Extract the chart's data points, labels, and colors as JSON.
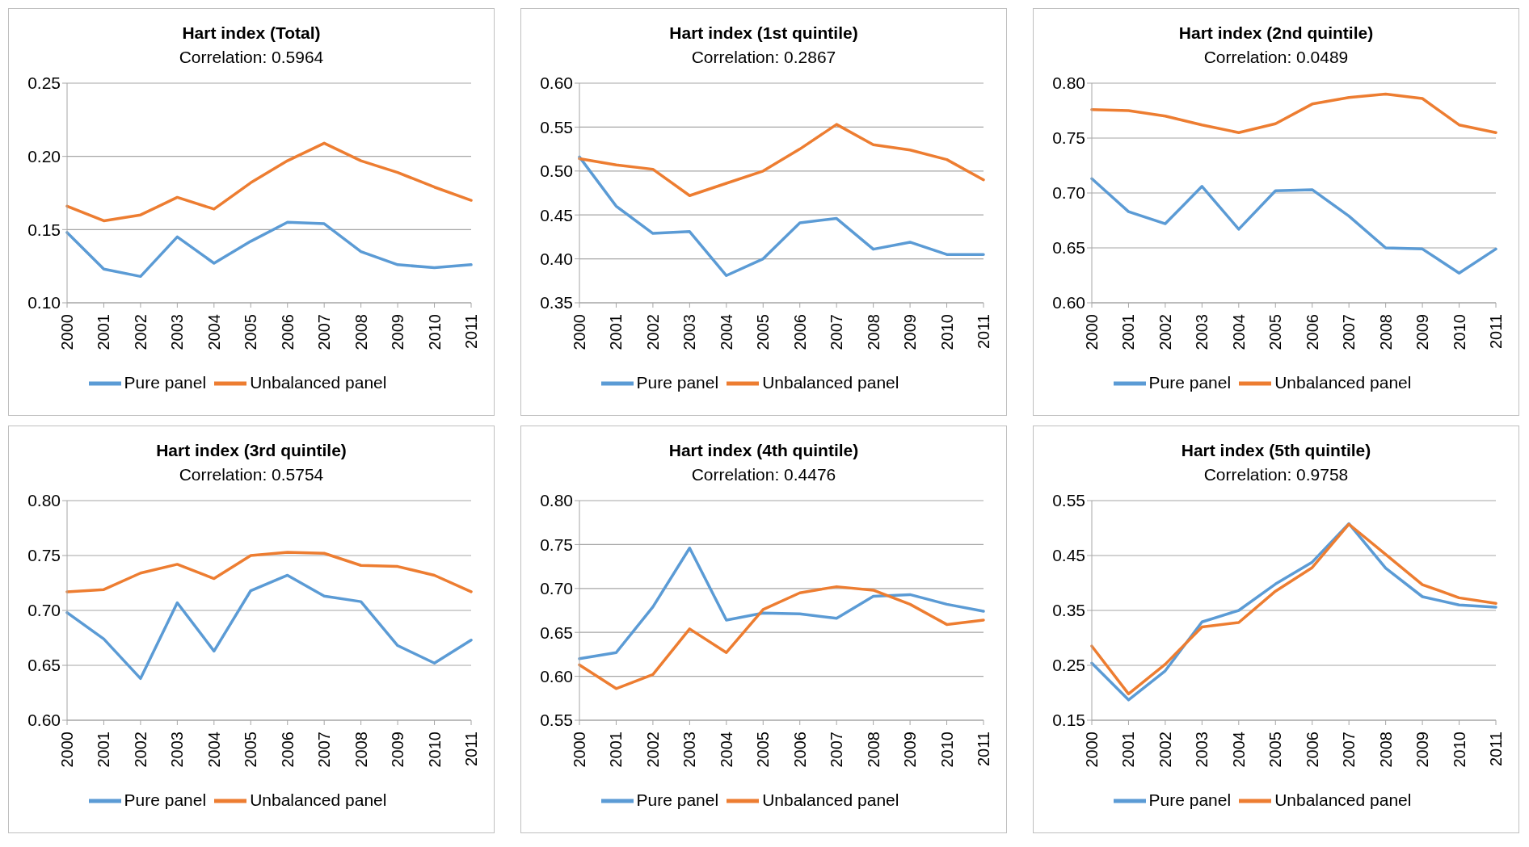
{
  "chart_data": [
    {
      "type": "line",
      "title": "Hart index (Total)",
      "subtitle": "Correlation: 0.5964",
      "categories": [
        "2000",
        "2001",
        "2002",
        "2003",
        "2004",
        "2005",
        "2006",
        "2007",
        "2008",
        "2009",
        "2010",
        "2011"
      ],
      "ylim": [
        0.1,
        0.25
      ],
      "yticks": [
        {
          "value": 0.1,
          "label": "0.10"
        },
        0.15,
        {
          "value": 0.2,
          "label": "0.20"
        },
        0.25
      ],
      "grid": "y",
      "legend": "bottom",
      "marker": "none",
      "line_style": "solid",
      "series": [
        {
          "name": "Pure panel",
          "color": "#5b9bd5",
          "values": [
            0.148,
            0.123,
            0.118,
            0.145,
            0.127,
            0.142,
            0.155,
            0.154,
            0.135,
            0.126,
            0.124,
            0.126
          ]
        },
        {
          "name": "Unbalanced panel",
          "color": "#ed7d31",
          "values": [
            0.166,
            0.156,
            0.16,
            0.172,
            0.164,
            0.182,
            0.197,
            0.209,
            0.197,
            0.189,
            0.179,
            0.17
          ]
        }
      ]
    },
    {
      "type": "line",
      "title": "Hart index (1st quintile)",
      "subtitle": "Correlation: 0.2867",
      "categories": [
        "2000",
        "2001",
        "2002",
        "2003",
        "2004",
        "2005",
        "2006",
        "2007",
        "2008",
        "2009",
        "2010",
        "2011"
      ],
      "ylim": [
        0.35,
        0.6
      ],
      "yticks": [
        0.35,
        {
          "value": 0.4,
          "label": "0.40"
        },
        0.45,
        {
          "value": 0.5,
          "label": "0.50"
        },
        0.55,
        {
          "value": 0.6,
          "label": "0.60"
        }
      ],
      "grid": "y",
      "legend": "bottom",
      "marker": "none",
      "line_style": "solid",
      "series": [
        {
          "name": "Pure panel",
          "color": "#5b9bd5",
          "values": [
            0.516,
            0.46,
            0.429,
            0.431,
            0.381,
            0.4,
            0.441,
            0.446,
            0.411,
            0.419,
            0.405,
            0.405
          ]
        },
        {
          "name": "Unbalanced panel",
          "color": "#ed7d31",
          "values": [
            0.514,
            0.507,
            0.502,
            0.472,
            0.486,
            0.5,
            0.525,
            0.553,
            0.53,
            0.524,
            0.513,
            0.49
          ]
        }
      ]
    },
    {
      "type": "line",
      "title": "Hart index (2nd quintile)",
      "subtitle": "Correlation: 0.0489",
      "categories": [
        "2000",
        "2001",
        "2002",
        "2003",
        "2004",
        "2005",
        "2006",
        "2007",
        "2008",
        "2009",
        "2010",
        "2011"
      ],
      "ylim": [
        0.6,
        0.8
      ],
      "yticks": [
        {
          "value": 0.6,
          "label": "0.60"
        },
        0.65,
        {
          "value": 0.7,
          "label": "0.70"
        },
        0.75,
        {
          "value": 0.8,
          "label": "0.80"
        }
      ],
      "grid": "y",
      "legend": "bottom",
      "marker": "none",
      "line_style": "solid",
      "series": [
        {
          "name": "Pure panel",
          "color": "#5b9bd5",
          "values": [
            0.713,
            0.683,
            0.672,
            0.706,
            0.667,
            0.702,
            0.703,
            0.679,
            0.65,
            0.649,
            0.627,
            0.649
          ]
        },
        {
          "name": "Unbalanced panel",
          "color": "#ed7d31",
          "values": [
            0.776,
            0.775,
            0.77,
            0.762,
            0.755,
            0.763,
            0.781,
            0.787,
            0.79,
            0.786,
            0.762,
            0.755
          ]
        }
      ]
    },
    {
      "type": "line",
      "title": "Hart index (3rd quintile)",
      "subtitle": "Correlation: 0.5754",
      "categories": [
        "2000",
        "2001",
        "2002",
        "2003",
        "2004",
        "2005",
        "2006",
        "2007",
        "2008",
        "2009",
        "2010",
        "2011"
      ],
      "ylim": [
        0.6,
        0.8
      ],
      "yticks": [
        {
          "value": 0.6,
          "label": "0.60"
        },
        0.65,
        {
          "value": 0.7,
          "label": "0.70"
        },
        0.75,
        {
          "value": 0.8,
          "label": "0.80"
        }
      ],
      "grid": "y",
      "legend": "bottom",
      "marker": "none",
      "line_style": "solid",
      "series": [
        {
          "name": "Pure panel",
          "color": "#5b9bd5",
          "values": [
            0.698,
            0.674,
            0.638,
            0.707,
            0.663,
            0.718,
            0.732,
            0.713,
            0.708,
            0.668,
            0.652,
            0.673
          ]
        },
        {
          "name": "Unbalanced panel",
          "color": "#ed7d31",
          "values": [
            0.717,
            0.719,
            0.734,
            0.742,
            0.729,
            0.75,
            0.753,
            0.752,
            0.741,
            0.74,
            0.732,
            0.717
          ]
        }
      ]
    },
    {
      "type": "line",
      "title": "Hart index (4th quintile)",
      "subtitle": "Correlation: 0.4476",
      "categories": [
        "2000",
        "2001",
        "2002",
        "2003",
        "2004",
        "2005",
        "2006",
        "2007",
        "2008",
        "2009",
        "2010",
        "2011"
      ],
      "ylim": [
        0.55,
        0.8
      ],
      "yticks": [
        0.55,
        {
          "value": 0.6,
          "label": "0.60"
        },
        0.65,
        {
          "value": 0.7,
          "label": "0.70"
        },
        0.75,
        {
          "value": 0.8,
          "label": "0.80"
        }
      ],
      "grid": "y",
      "legend": "bottom",
      "marker": "none",
      "line_style": "solid",
      "series": [
        {
          "name": "Pure panel",
          "color": "#5b9bd5",
          "values": [
            0.62,
            0.627,
            0.679,
            0.746,
            0.664,
            0.672,
            0.671,
            0.666,
            0.691,
            0.693,
            0.682,
            0.674
          ]
        },
        {
          "name": "Unbalanced panel",
          "color": "#ed7d31",
          "values": [
            0.613,
            0.586,
            0.602,
            0.654,
            0.627,
            0.676,
            0.695,
            0.702,
            0.698,
            0.682,
            0.659,
            0.664
          ]
        }
      ]
    },
    {
      "type": "line",
      "title": "Hart index (5th quintile)",
      "subtitle": "Correlation: 0.9758",
      "categories": [
        "2000",
        "2001",
        "2002",
        "2003",
        "2004",
        "2005",
        "2006",
        "2007",
        "2008",
        "2009",
        "2010",
        "2011"
      ],
      "ylim": [
        0.15,
        0.55
      ],
      "yticks": [
        0.15,
        0.25,
        0.35,
        0.45,
        0.55
      ],
      "grid": "y",
      "legend": "bottom",
      "marker": "none",
      "line_style": "solid",
      "series": [
        {
          "name": "Pure panel",
          "color": "#5b9bd5",
          "values": [
            0.254,
            0.187,
            0.24,
            0.329,
            0.35,
            0.398,
            0.438,
            0.508,
            0.427,
            0.375,
            0.36,
            0.356
          ]
        },
        {
          "name": "Unbalanced panel",
          "color": "#ed7d31",
          "values": [
            0.285,
            0.198,
            0.252,
            0.32,
            0.328,
            0.385,
            0.428,
            0.507,
            0.452,
            0.397,
            0.373,
            0.363
          ]
        }
      ]
    }
  ]
}
